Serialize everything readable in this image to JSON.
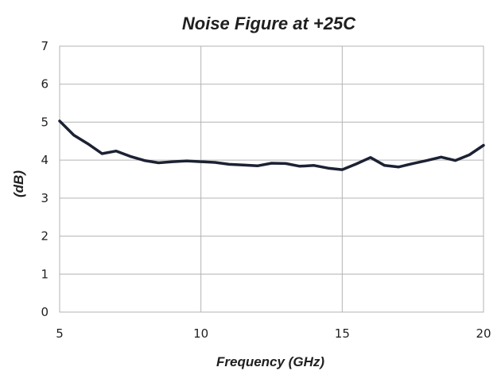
{
  "chart_data": {
    "type": "line",
    "title": "Noise Figure at +25C",
    "xlabel": "Frequency (GHz)",
    "ylabel": "(dB)",
    "xlim": [
      5,
      20
    ],
    "ylim": [
      0,
      7
    ],
    "x_ticks": [
      5,
      10,
      15,
      20
    ],
    "y_ticks": [
      0,
      1,
      2,
      3,
      4,
      5,
      6,
      7
    ],
    "grid": true,
    "colors": {
      "series": "#1c2233",
      "grid": "#b3b3b3"
    },
    "series": [
      {
        "x": [
          5.0,
          5.5,
          6.0,
          6.5,
          7.0,
          7.5,
          8.0,
          8.5,
          9.0,
          9.5,
          10.0,
          10.5,
          11.0,
          11.5,
          12.0,
          12.5,
          13.0,
          13.5,
          14.0,
          14.5,
          15.0,
          15.5,
          16.0,
          16.5,
          17.0,
          17.5,
          18.0,
          18.5,
          19.0,
          19.5,
          20.0
        ],
        "y": [
          5.03,
          4.66,
          4.43,
          4.17,
          4.24,
          4.1,
          3.99,
          3.93,
          3.96,
          3.98,
          3.96,
          3.94,
          3.89,
          3.87,
          3.85,
          3.92,
          3.91,
          3.84,
          3.86,
          3.79,
          3.75,
          3.9,
          4.07,
          3.86,
          3.82,
          3.91,
          3.99,
          4.08,
          3.99,
          4.14,
          4.39
        ]
      }
    ]
  }
}
